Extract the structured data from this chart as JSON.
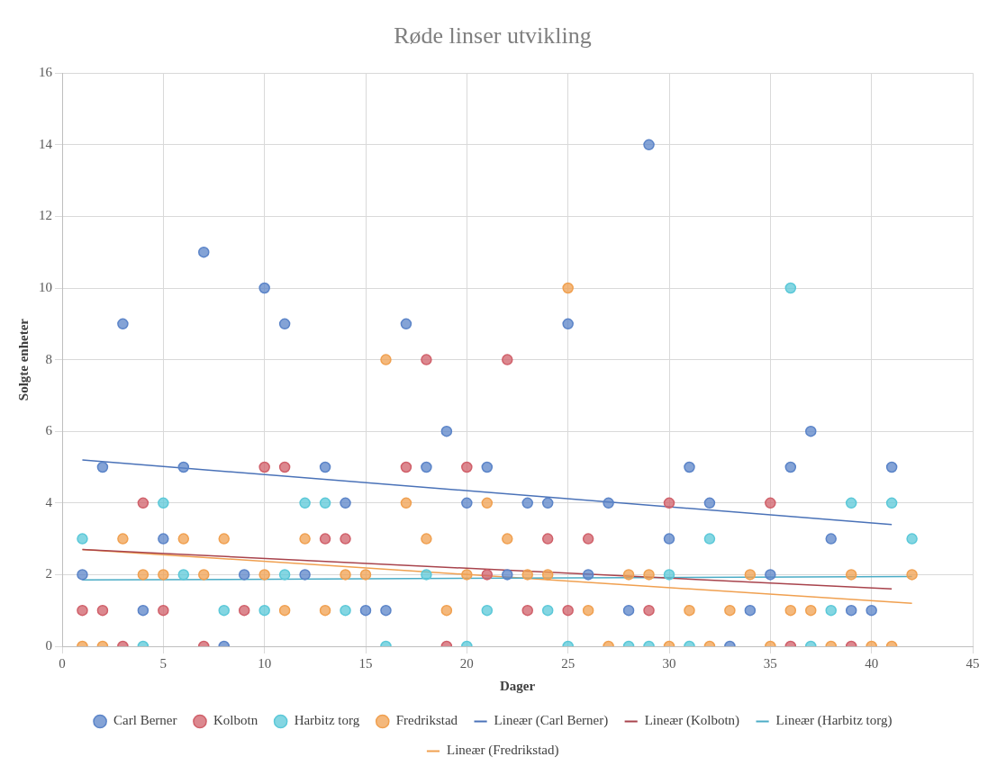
{
  "chart_data": {
    "type": "scatter",
    "title": "Røde linser utvikling",
    "xlabel": "Dager",
    "ylabel": "Solgte enheter",
    "x": [
      1,
      2,
      3,
      4,
      5,
      6,
      7,
      8,
      9,
      10,
      11,
      12,
      13,
      14,
      15,
      16,
      17,
      18,
      19,
      20,
      21,
      22,
      23,
      24,
      25,
      26,
      27,
      28,
      29,
      30,
      31,
      32,
      33,
      34,
      35,
      36,
      37,
      38,
      39,
      40,
      41,
      42
    ],
    "xlim": [
      0,
      45
    ],
    "xticks": [
      0,
      5,
      10,
      15,
      20,
      25,
      30,
      35,
      40,
      45
    ],
    "ylim": [
      0,
      16
    ],
    "yticks": [
      0,
      2,
      4,
      6,
      8,
      10,
      12,
      14,
      16
    ],
    "grid": true,
    "legend": "bottom",
    "series": [
      {
        "name": "Carl Berner",
        "marker": "circle",
        "color": "#5b84c8",
        "values": [
          2,
          5,
          9,
          1,
          3,
          5,
          11,
          0,
          2,
          10,
          9,
          2,
          5,
          4,
          1,
          1,
          9,
          5,
          6,
          4,
          5,
          2,
          4,
          4,
          9,
          2,
          4,
          1,
          14,
          3,
          5,
          4,
          0,
          1,
          2,
          5,
          6,
          3,
          1,
          1,
          5,
          null
        ]
      },
      {
        "name": "Kolbotn",
        "marker": "circle",
        "color": "#d0606a",
        "values": [
          1,
          1,
          0,
          4,
          1,
          null,
          0,
          null,
          1,
          5,
          5,
          null,
          3,
          3,
          null,
          null,
          5,
          8,
          0,
          5,
          2,
          8,
          1,
          3,
          1,
          3,
          null,
          null,
          1,
          4,
          null,
          null,
          null,
          null,
          4,
          0,
          null,
          null,
          0,
          null,
          null,
          null
        ]
      },
      {
        "name": "Harbitz torg",
        "marker": "circle",
        "color": "#5bc8d8",
        "values": [
          3,
          null,
          null,
          0,
          4,
          2,
          null,
          1,
          null,
          1,
          2,
          4,
          4,
          1,
          null,
          0,
          null,
          2,
          null,
          0,
          1,
          null,
          null,
          1,
          0,
          null,
          null,
          0,
          0,
          2,
          0,
          3,
          null,
          null,
          null,
          10,
          0,
          1,
          4,
          null,
          4,
          3
        ]
      },
      {
        "name": "Fredrikstad",
        "marker": "circle",
        "color": "#f0a050",
        "values": [
          0,
          0,
          3,
          2,
          2,
          3,
          2,
          3,
          null,
          2,
          1,
          3,
          1,
          2,
          2,
          8,
          4,
          3,
          1,
          2,
          4,
          3,
          2,
          2,
          10,
          1,
          0,
          2,
          2,
          0,
          1,
          0,
          1,
          2,
          0,
          1,
          1,
          0,
          2,
          0,
          0,
          2
        ]
      },
      {
        "name": "Lineær (Carl Berner)",
        "type": "line",
        "marker": "none",
        "line_style": "solid",
        "color": "#4a72b8",
        "x": [
          1,
          41
        ],
        "values": [
          5.2,
          3.4
        ]
      },
      {
        "name": "Lineær (Kolbotn)",
        "type": "line",
        "marker": "none",
        "line_style": "solid",
        "color": "#a8434c",
        "x": [
          1,
          41
        ],
        "values": [
          2.7,
          1.6
        ]
      },
      {
        "name": "Lineær (Harbitz torg)",
        "type": "line",
        "marker": "none",
        "line_style": "solid",
        "color": "#4bacc6",
        "x": [
          1,
          42
        ],
        "values": [
          1.85,
          1.95
        ]
      },
      {
        "name": "Lineær (Fredrikstad)",
        "type": "line",
        "marker": "none",
        "line_style": "solid",
        "color": "#f0a050",
        "x": [
          1,
          42
        ],
        "values": [
          2.7,
          1.2
        ]
      }
    ]
  }
}
